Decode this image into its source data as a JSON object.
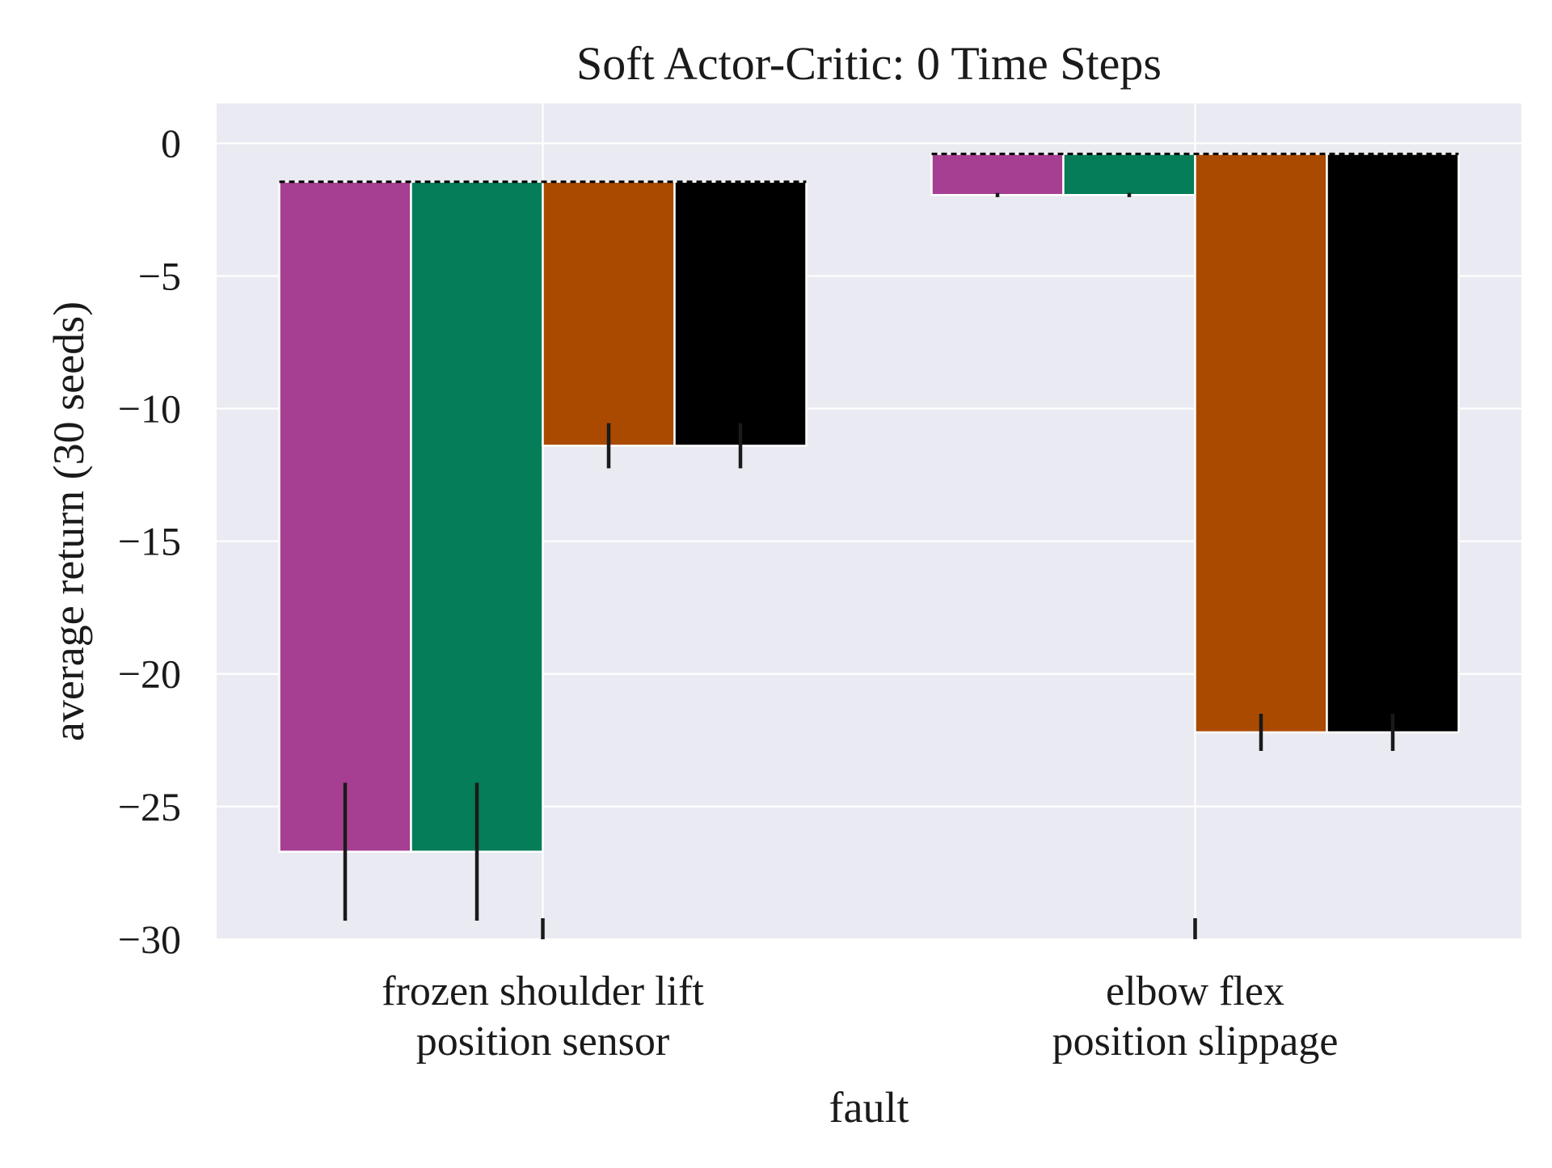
{
  "chart_data": {
    "type": "bar",
    "title": "Soft Actor-Critic: 0 Time Steps",
    "xlabel": "fault",
    "ylabel": "average return (30 seeds)",
    "ylim": [
      -30,
      1.5
    ],
    "yticks": [
      0,
      -5,
      -10,
      -15,
      -20,
      -25,
      -30
    ],
    "ytick_labels": [
      "0",
      "−5",
      "−10",
      "−15",
      "−20",
      "−25",
      "−30"
    ],
    "grid": true,
    "legend": "none",
    "categories": [
      [
        "frozen shoulder lift",
        "position sensor"
      ],
      [
        "elbow flex",
        "position slippage"
      ]
    ],
    "series_colors": [
      "#a63f92",
      "#047d58",
      "#aa4a01",
      "#000000"
    ],
    "series": [
      {
        "values": [
          -26.7,
          -1.95
        ],
        "errors": [
          2.6,
          0.08
        ]
      },
      {
        "values": [
          -26.7,
          -1.95
        ],
        "errors": [
          2.6,
          0.08
        ]
      },
      {
        "values": [
          -11.4,
          -22.2
        ],
        "errors": [
          0.85,
          0.7
        ]
      },
      {
        "values": [
          -11.4,
          -22.2
        ],
        "errors": [
          0.85,
          0.7
        ]
      }
    ],
    "reference_line": [
      -1.45,
      -0.4
    ],
    "colors": {
      "plot_background": "#eaeaf2",
      "grid": "#ffffff",
      "error_bar": "#1a1a1a",
      "reference_line": "#000000"
    }
  }
}
